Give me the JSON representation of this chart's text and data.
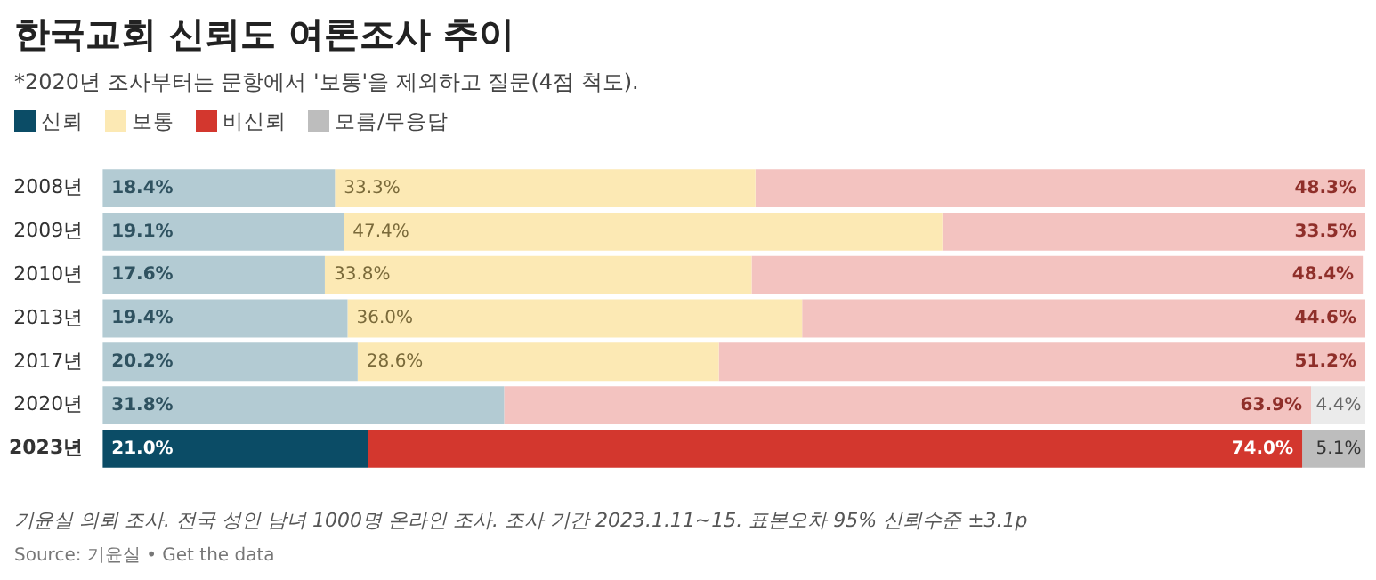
{
  "chart_data": {
    "type": "bar",
    "orientation": "horizontal",
    "stacked": true,
    "title": "한국교회 신뢰도 여론조사 추이",
    "subtitle": "*2020년 조사부터는 문항에서 '보통'을 제외하고 질문(4점 척도).",
    "categories": [
      "2008년",
      "2009년",
      "2010년",
      "2013년",
      "2017년",
      "2020년",
      "2023년"
    ],
    "series": [
      {
        "name": "신뢰",
        "color": "#0b4c66",
        "colors": [
          "#b3cbd3",
          "#b3cbd3",
          "#b3cbd3",
          "#b3cbd3",
          "#b3cbd3",
          "#b3cbd3",
          "#0b4c66"
        ],
        "values": [
          18.4,
          19.1,
          17.6,
          19.4,
          20.2,
          31.8,
          21.0
        ],
        "value_labels": [
          "18.4%",
          "19.1%",
          "17.6%",
          "19.4%",
          "20.2%",
          "31.8%",
          "21.0%"
        ]
      },
      {
        "name": "보통",
        "color": "#fce9b4",
        "colors": [
          "#fce9b4",
          "#fce9b4",
          "#fce9b4",
          "#fce9b4",
          "#fce9b4",
          "#fce9b4",
          "#fce9b4"
        ],
        "values": [
          33.3,
          47.4,
          33.8,
          36.0,
          28.6,
          null,
          null
        ],
        "value_labels": [
          "33.3%",
          "47.4%",
          "33.8%",
          "36.0%",
          "28.6%",
          null,
          null
        ]
      },
      {
        "name": "비신뢰",
        "color": "#d3372e",
        "colors": [
          "#f3c3c0",
          "#f3c3c0",
          "#f3c3c0",
          "#f3c3c0",
          "#f3c3c0",
          "#f3c3c0",
          "#d3372e"
        ],
        "values": [
          48.3,
          33.5,
          48.4,
          44.6,
          51.2,
          63.9,
          74.0
        ],
        "value_labels": [
          "48.3%",
          "33.5%",
          "48.4%",
          "44.6%",
          "51.2%",
          "63.9%",
          "74.0%"
        ]
      },
      {
        "name": "모름/무응답",
        "color": "#bdbdbd",
        "colors": [
          "#ebebeb",
          "#ebebeb",
          "#ebebeb",
          "#ebebeb",
          "#ebebeb",
          "#ebebeb",
          "#bdbdbd"
        ],
        "values": [
          null,
          null,
          null,
          null,
          null,
          4.4,
          5.1
        ],
        "value_labels": [
          null,
          null,
          null,
          null,
          null,
          "4.4%",
          "5.1%"
        ]
      }
    ],
    "xlim": [
      0,
      100
    ],
    "tick_labels": "y",
    "legend": "top left",
    "annotations": [
      "기윤실 의뢰 조사. 전국 성인 남녀 1000명 온라인 조사. 조사 기간 2023.1.11~15. 표본오차 95% 신뢰수준 ±3.1p",
      "Source: 기윤실 • Get the data"
    ]
  }
}
